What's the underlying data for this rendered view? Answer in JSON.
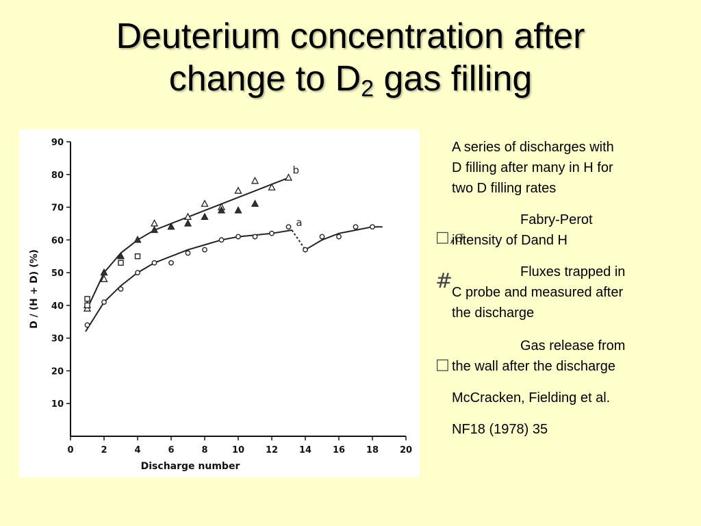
{
  "title": {
    "line1": "Deuterium concentration after",
    "line2_pre": "change to D",
    "line2_sub": "2",
    "line2_post": " gas filling"
  },
  "notes": {
    "intro": [
      "A series of discharges with",
      "D filling after many in H for",
      "two D filling rates"
    ],
    "item1": {
      "marker": "□,σ",
      "line1": "Fabry-Perot",
      "line2": "intensity of Dand H"
    },
    "item2": {
      "marker": "#",
      "line1": "Fluxes trapped in",
      "line2": "C probe and measured after",
      "line3": "the discharge"
    },
    "item3": {
      "marker": "□",
      "line1": "Gas release from",
      "line2": "the wall after the discharge"
    },
    "reference1": "McCracken, Fielding et al.",
    "reference2": "NF18 (1978) 35"
  },
  "colors": {
    "background": "#ffffcc",
    "chart_background": "#ffffff",
    "ink": "#222222"
  },
  "chart_data": {
    "type": "scatter",
    "xlabel": "Discharge number",
    "ylabel": "D / (H + D)     (%)",
    "xlim": [
      0,
      20
    ],
    "ylim": [
      0,
      90
    ],
    "xticks": [
      0,
      2,
      4,
      6,
      8,
      10,
      12,
      14,
      16,
      18,
      20
    ],
    "yticks": [
      10,
      20,
      30,
      40,
      50,
      60,
      70,
      80,
      90
    ],
    "grid": false,
    "series": [
      {
        "marker": "open-triangle",
        "x": [
          1,
          2,
          5,
          7,
          8,
          9,
          10,
          11,
          12,
          13
        ],
        "y": [
          39,
          48,
          65,
          67,
          71,
          70,
          75,
          78,
          76,
          79
        ]
      },
      {
        "marker": "filled-triangle",
        "x": [
          1,
          2,
          3,
          4,
          5,
          6,
          7,
          8,
          9,
          10,
          11
        ],
        "y": [
          40,
          50,
          55,
          60,
          63,
          64,
          65,
          67,
          69,
          69,
          71
        ]
      },
      {
        "marker": "open-square",
        "x": [
          1,
          1,
          3,
          4
        ],
        "y": [
          42,
          40,
          53,
          55
        ]
      },
      {
        "marker": "open-circle",
        "x": [
          1,
          2,
          3,
          4,
          5,
          6,
          7,
          8,
          9,
          10,
          11,
          12,
          13,
          14,
          15,
          16,
          17,
          18
        ],
        "y": [
          34,
          41,
          45,
          50,
          53,
          53,
          56,
          57,
          60,
          61,
          61,
          62,
          64,
          57,
          61,
          61,
          64,
          64
        ]
      }
    ],
    "curves": [
      {
        "label": "b",
        "style": "solid",
        "x": [
          1,
          2,
          3,
          4,
          5,
          6,
          7,
          8,
          9,
          10,
          11,
          12,
          13
        ],
        "y": [
          39,
          50,
          56,
          60,
          63,
          65,
          67,
          69,
          71,
          73,
          75,
          77,
          79
        ]
      },
      {
        "label": "a",
        "style": "solid",
        "x": [
          0.9,
          2,
          3,
          4,
          5,
          6,
          7,
          8,
          9,
          10,
          11,
          12,
          13.2
        ],
        "y": [
          32,
          41,
          46,
          50,
          53,
          55,
          57,
          58.5,
          60,
          61,
          61.5,
          62,
          63
        ]
      },
      {
        "label": "",
        "style": "dashed",
        "x": [
          13.2,
          13.6,
          14
        ],
        "y": [
          63,
          60,
          57
        ]
      },
      {
        "label": "",
        "style": "solid",
        "x": [
          14,
          15,
          16,
          17,
          18,
          18.6
        ],
        "y": [
          57,
          60,
          62,
          63,
          64,
          64
        ]
      }
    ]
  }
}
